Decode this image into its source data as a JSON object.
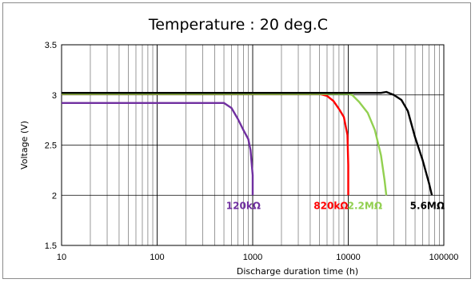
{
  "chart_data": {
    "type": "line",
    "title": "Temperature : 20 deg.C",
    "xlabel": "Discharge duration time (h)",
    "ylabel": "Voltage (V)",
    "x_scale": "log",
    "xlim": [
      10,
      100000
    ],
    "ylim": [
      1.5,
      3.5
    ],
    "x_ticks": [
      10,
      100,
      1000,
      10000,
      100000
    ],
    "x_tick_labels": [
      "10",
      "100",
      "1000",
      "10000",
      "100000"
    ],
    "y_ticks": [
      1.5,
      2,
      2.5,
      3,
      3.5
    ],
    "y_tick_labels": [
      "1.5",
      "2",
      "2.5",
      "3",
      "3.5"
    ],
    "grid": true,
    "series": [
      {
        "name": "120kΩ",
        "color": "#7030a0",
        "x": [
          10,
          100,
          500,
          600,
          700,
          800,
          900,
          950,
          1000,
          1000
        ],
        "y": [
          2.92,
          2.92,
          2.92,
          2.87,
          2.76,
          2.65,
          2.56,
          2.45,
          2.2,
          2.0
        ]
      },
      {
        "name": "820kΩ",
        "color": "#ff0000",
        "x": [
          10,
          4000,
          5000,
          6000,
          7000,
          8000,
          9000,
          9800,
          10000,
          10000
        ],
        "y": [
          3.01,
          3.01,
          3.01,
          2.99,
          2.94,
          2.86,
          2.78,
          2.6,
          2.3,
          2.0
        ]
      },
      {
        "name": "2.2MΩ",
        "color": "#92d050",
        "x": [
          10,
          10000,
          11000,
          13000,
          16000,
          19000,
          22000,
          24000,
          25000
        ],
        "y": [
          3.01,
          3.01,
          3.0,
          2.93,
          2.82,
          2.65,
          2.4,
          2.15,
          2.0
        ]
      },
      {
        "name": "5.6MΩ",
        "color": "#000000",
        "x": [
          10,
          22000,
          25000,
          30000,
          36000,
          42000,
          50000,
          60000,
          70000,
          75000
        ],
        "y": [
          3.02,
          3.02,
          3.03,
          3.0,
          2.95,
          2.84,
          2.58,
          2.35,
          2.12,
          2.0
        ]
      }
    ]
  }
}
